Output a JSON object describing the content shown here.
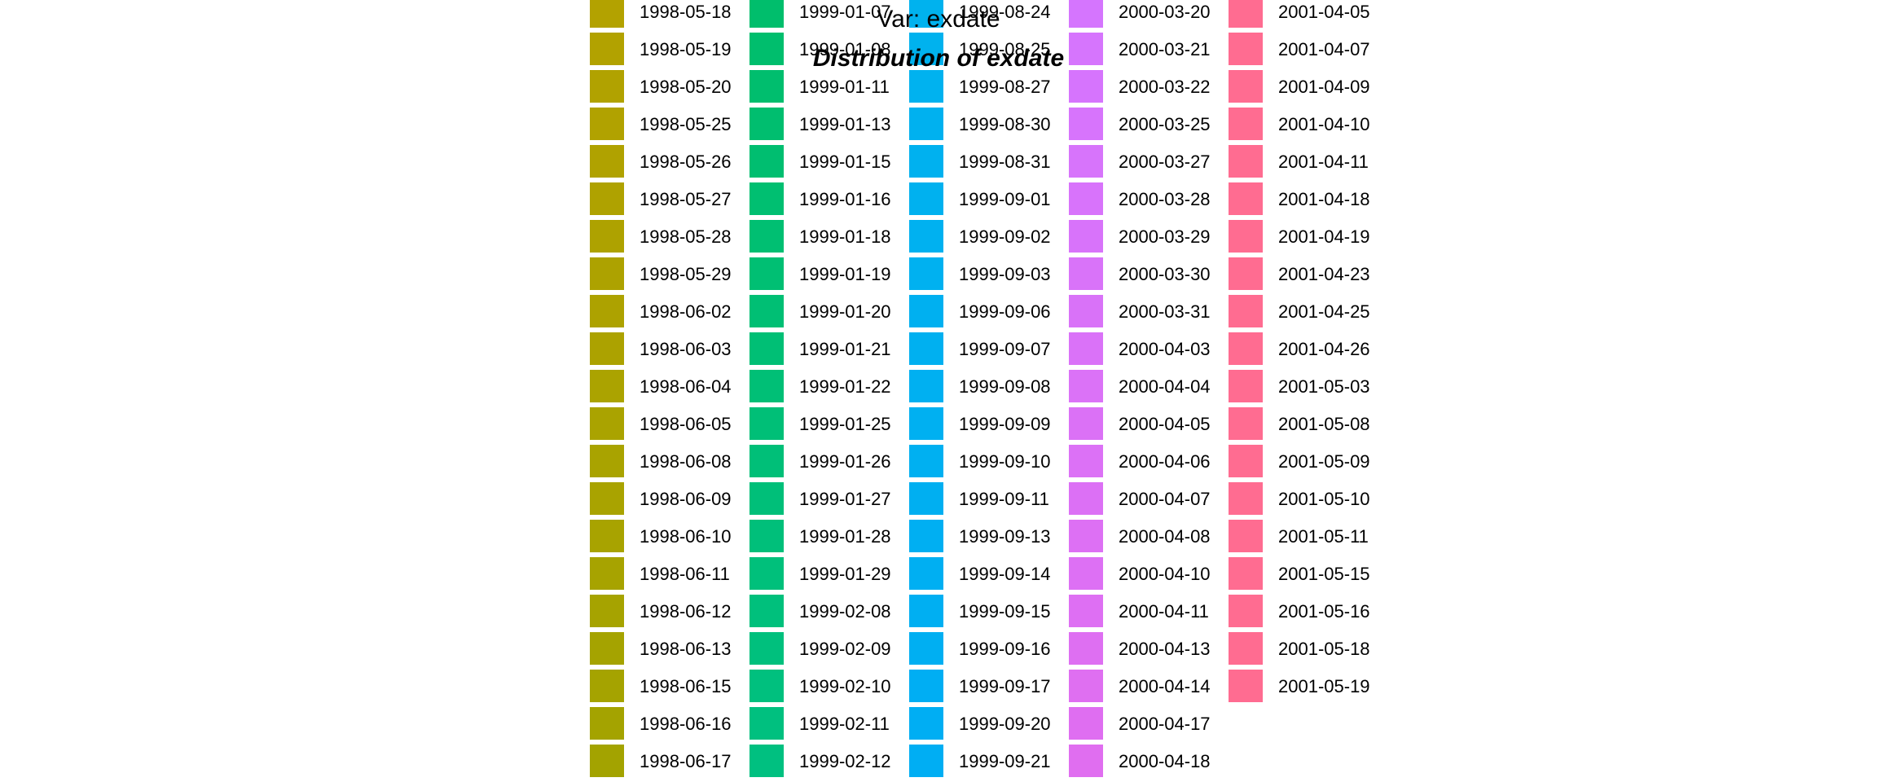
{
  "chart_data": {
    "type": "legend",
    "title": "Distribution of exdate",
    "subtitle": "Var: exdate",
    "xlabel": "",
    "ylabel": "",
    "columns": [
      {
        "color": "#B3A200",
        "colors_end": "#A3A300",
        "entries": [
          "1998-05-18",
          "1998-05-19",
          "1998-05-20",
          "1998-05-25",
          "1998-05-26",
          "1998-05-27",
          "1998-05-28",
          "1998-05-29",
          "1998-06-02",
          "1998-06-03",
          "1998-06-04",
          "1998-06-05",
          "1998-06-08",
          "1998-06-09",
          "1998-06-10",
          "1998-06-11",
          "1998-06-12",
          "1998-06-13",
          "1998-06-15",
          "1998-06-16",
          "1998-06-17"
        ]
      },
      {
        "color": "#00BE6C",
        "colors_end": "#00C080",
        "entries": [
          "1999-01-07",
          "1999-01-08",
          "1999-01-11",
          "1999-01-13",
          "1999-01-15",
          "1999-01-16",
          "1999-01-18",
          "1999-01-19",
          "1999-01-20",
          "1999-01-21",
          "1999-01-22",
          "1999-01-25",
          "1999-01-26",
          "1999-01-27",
          "1999-01-28",
          "1999-01-29",
          "1999-02-08",
          "1999-02-09",
          "1999-02-10",
          "1999-02-11",
          "1999-02-12"
        ]
      },
      {
        "color": "#00B2EE",
        "colors_end": "#00AEF3",
        "entries": [
          "1999-08-24",
          "1999-08-25",
          "1999-08-27",
          "1999-08-30",
          "1999-08-31",
          "1999-09-01",
          "1999-09-02",
          "1999-09-03",
          "1999-09-06",
          "1999-09-07",
          "1999-09-08",
          "1999-09-09",
          "1999-09-10",
          "1999-09-11",
          "1999-09-13",
          "1999-09-14",
          "1999-09-15",
          "1999-09-16",
          "1999-09-17",
          "1999-09-20",
          "1999-09-21"
        ]
      },
      {
        "color": "#D575FE",
        "colors_end": "#E06EF0",
        "entries": [
          "2000-03-20",
          "2000-03-21",
          "2000-03-22",
          "2000-03-25",
          "2000-03-27",
          "2000-03-28",
          "2000-03-29",
          "2000-03-30",
          "2000-03-31",
          "2000-04-03",
          "2000-04-04",
          "2000-04-05",
          "2000-04-06",
          "2000-04-07",
          "2000-04-08",
          "2000-04-10",
          "2000-04-11",
          "2000-04-13",
          "2000-04-14",
          "2000-04-17",
          "2000-04-18"
        ]
      },
      {
        "color": "#FF6C91",
        "colors_end": "#FF6C91",
        "entries": [
          "2001-04-05",
          "2001-04-07",
          "2001-04-09",
          "2001-04-10",
          "2001-04-11",
          "2001-04-18",
          "2001-04-19",
          "2001-04-23",
          "2001-04-25",
          "2001-04-26",
          "2001-05-03",
          "2001-05-08",
          "2001-05-09",
          "2001-05-10",
          "2001-05-11",
          "2001-05-15",
          "2001-05-16",
          "2001-05-18",
          "2001-05-19"
        ]
      }
    ]
  }
}
